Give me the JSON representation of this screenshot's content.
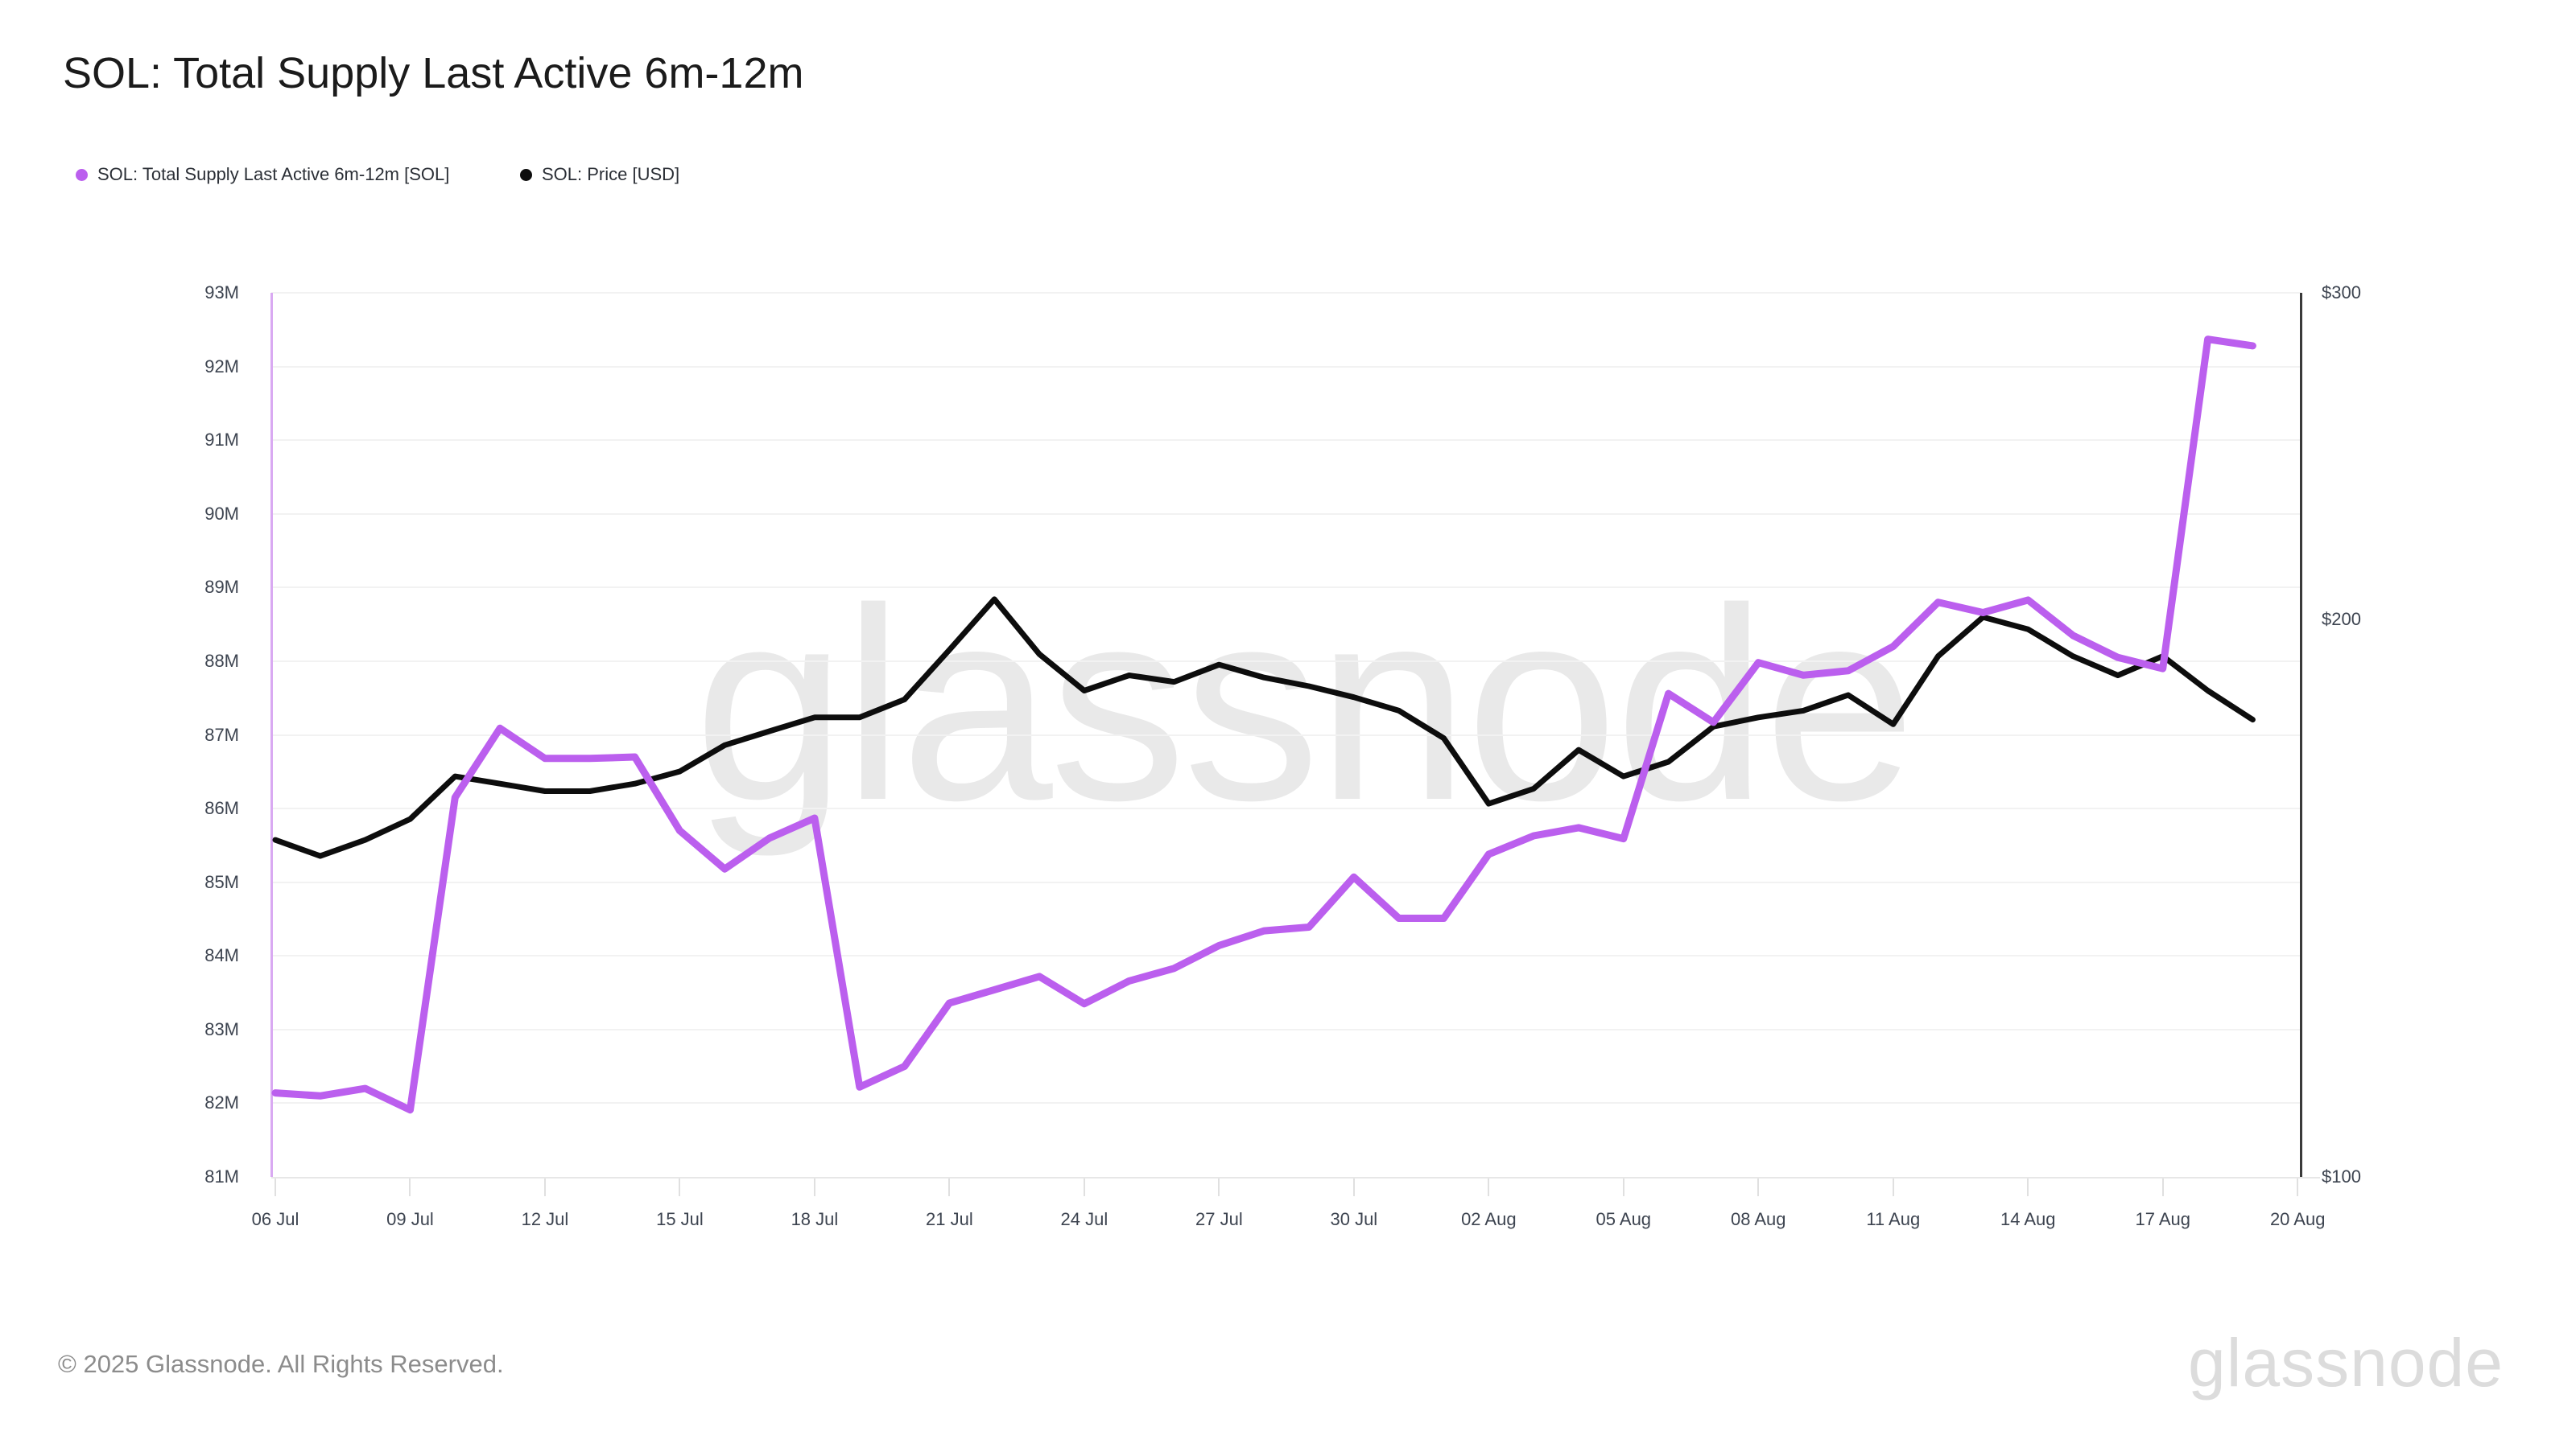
{
  "title": "SOL: Total Supply Last Active 6m-12m",
  "legend": {
    "items": [
      {
        "label": "SOL: Total Supply Last Active 6m-12m [SOL]",
        "color": "#bb5fee"
      },
      {
        "label": "SOL: Price [USD]",
        "color": "#0d0d0d"
      }
    ]
  },
  "watermark_text": "glassnode",
  "footer": {
    "copyright": "© 2025 Glassnode. All Rights Reserved.",
    "brand": "glassnode"
  },
  "chart_data": {
    "type": "line",
    "x": [
      "06 Jul",
      "07 Jul",
      "08 Jul",
      "09 Jul",
      "10 Jul",
      "11 Jul",
      "12 Jul",
      "13 Jul",
      "14 Jul",
      "15 Jul",
      "16 Jul",
      "17 Jul",
      "18 Jul",
      "19 Jul",
      "20 Jul",
      "21 Jul",
      "22 Jul",
      "23 Jul",
      "24 Jul",
      "25 Jul",
      "26 Jul",
      "27 Jul",
      "28 Jul",
      "29 Jul",
      "30 Jul",
      "31 Jul",
      "01 Aug",
      "02 Aug",
      "03 Aug",
      "04 Aug",
      "05 Aug",
      "06 Aug",
      "07 Aug",
      "08 Aug",
      "09 Aug",
      "10 Aug",
      "11 Aug",
      "12 Aug",
      "13 Aug",
      "14 Aug",
      "15 Aug",
      "16 Aug",
      "17 Aug",
      "18 Aug",
      "19 Aug"
    ],
    "x_tick_labels": [
      "06 Jul",
      "09 Jul",
      "12 Jul",
      "15 Jul",
      "18 Jul",
      "21 Jul",
      "24 Jul",
      "27 Jul",
      "30 Jul",
      "02 Aug",
      "05 Aug",
      "08 Aug",
      "11 Aug",
      "14 Aug",
      "17 Aug",
      "20 Aug"
    ],
    "series": [
      {
        "name": "SOL: Total Supply Last Active 6m-12m [SOL]",
        "axis": "left",
        "unit": "SOL millions",
        "color": "#bb5fee",
        "stroke_width": 9,
        "values": [
          82.14,
          82.1,
          82.2,
          81.91,
          86.15,
          87.09,
          86.68,
          86.68,
          86.7,
          85.7,
          85.18,
          85.6,
          85.87,
          82.22,
          82.5,
          83.36,
          83.54,
          83.72,
          83.35,
          83.66,
          83.83,
          84.14,
          84.34,
          84.39,
          85.07,
          84.51,
          84.51,
          85.38,
          85.63,
          85.74,
          85.59,
          87.56,
          87.17,
          87.98,
          87.81,
          87.87,
          88.2,
          88.8,
          88.66,
          88.83,
          88.35,
          88.05,
          87.9,
          92.37,
          92.28
        ]
      },
      {
        "name": "SOL: Price [USD]",
        "axis": "right",
        "unit": "USD",
        "color": "#0d0d0d",
        "stroke_width": 7,
        "values": [
          152,
          149,
          152,
          156,
          164.5,
          163,
          161.5,
          161.5,
          163,
          165.5,
          171,
          174,
          177,
          177,
          181,
          192.5,
          205,
          191.5,
          183,
          186.5,
          185,
          189,
          186,
          184,
          181.5,
          178.5,
          172.5,
          159,
          162,
          170,
          164.5,
          167.5,
          175,
          177,
          178.5,
          182,
          175.5,
          191,
          200.5,
          197.5,
          191,
          186.5,
          191,
          183,
          176.5
        ]
      }
    ],
    "left_axis": {
      "tick_labels": [
        "93M",
        "92M",
        "91M",
        "90M",
        "89M",
        "88M",
        "87M",
        "86M",
        "85M",
        "84M",
        "83M",
        "82M",
        "81M"
      ],
      "min": 81,
      "max": 93,
      "unit": "M",
      "scale": "linear"
    },
    "right_axis": {
      "tick_labels": [
        "$300",
        "$200",
        "$100"
      ],
      "tick_values": [
        300,
        200,
        100
      ],
      "min": 100,
      "max": 300,
      "unit": "USD",
      "scale": "log"
    },
    "grid": "horizontal"
  }
}
